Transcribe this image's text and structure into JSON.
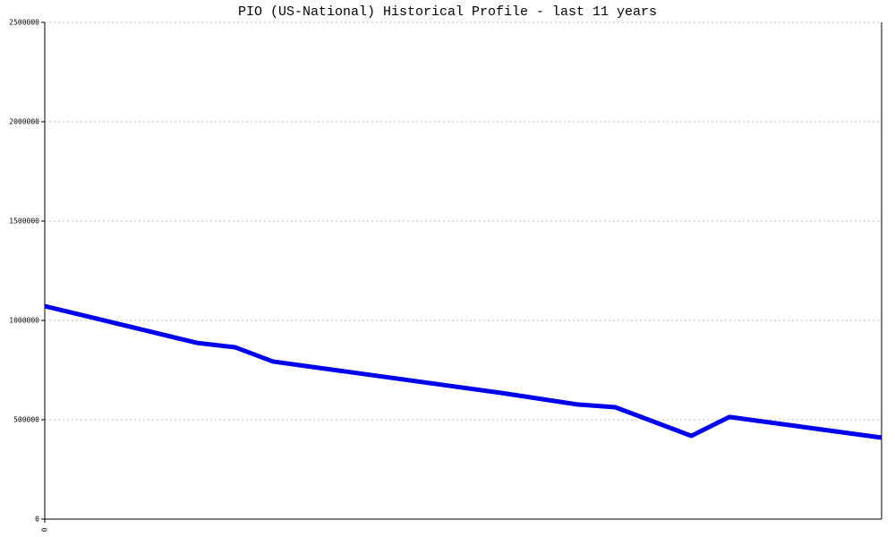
{
  "chart_data": {
    "type": "line",
    "title": "PIO (US-National) Historical Profile - last 11 years",
    "x": [
      0,
      2,
      2.5,
      3,
      6,
      7,
      7.5,
      8.5,
      9,
      11
    ],
    "series": [
      {
        "name": "PIO",
        "color": "#0000ee",
        "values": [
          1072000,
          887000,
          865000,
          793000,
          635000,
          577000,
          563000,
          419000,
          514000,
          410000
        ]
      }
    ],
    "xlim": [
      0,
      11
    ],
    "xticks": [
      0
    ],
    "ylim": [
      0,
      2500000
    ],
    "yticks": [
      0,
      500000,
      1000000,
      1500000,
      2000000,
      2500000
    ],
    "grid": true
  }
}
